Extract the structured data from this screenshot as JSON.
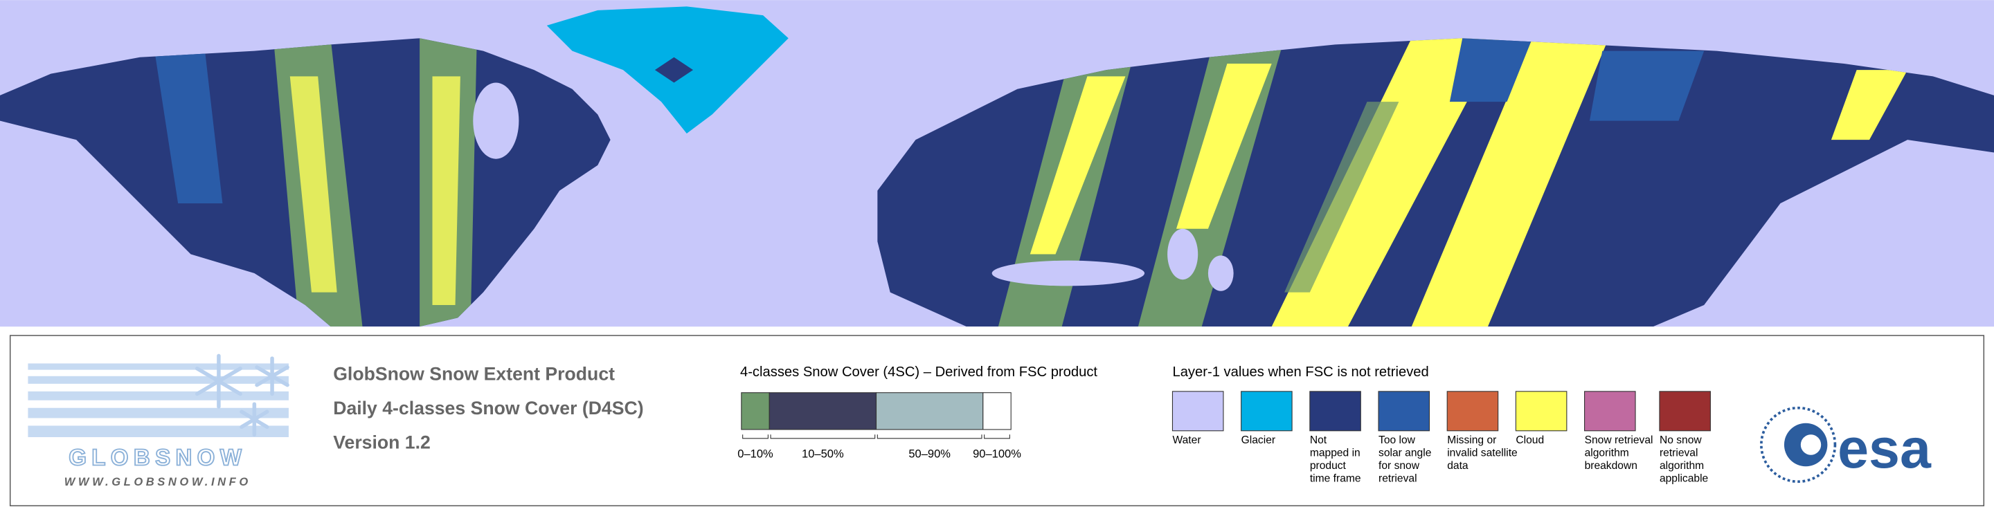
{
  "logo": {
    "name": "GLOBSNOW",
    "url": "WWW.GLOBSNOW.INFO"
  },
  "product": {
    "lines": [
      "GlobSnow Snow Extent Product",
      "Daily 4-classes Snow Cover (D4SC)",
      "Version 1.2"
    ]
  },
  "snow_cover_legend": {
    "title": "4-classes Snow Cover (4SC) – Derived from FSC product",
    "classes": [
      {
        "label": "0–10%",
        "color": "#6f9a6c"
      },
      {
        "label": "10–50%",
        "color": "#3e3f5e"
      },
      {
        "label": "50–90%",
        "color": "#a3bcc1"
      },
      {
        "label": "90–100%",
        "color": "#ffffff"
      }
    ]
  },
  "layer_legend": {
    "title": "Layer-1 values when FSC is not retrieved",
    "items": [
      {
        "lines": [
          "Water"
        ],
        "color": "#c8c8fa"
      },
      {
        "lines": [
          "Glacier"
        ],
        "color": "#00b0e6"
      },
      {
        "lines": [
          "Not",
          "mapped in",
          "product",
          "time frame"
        ],
        "color": "#283a7c"
      },
      {
        "lines": [
          "Too low",
          "solar angle",
          "for snow",
          "retrieval"
        ],
        "color": "#2a5ca8"
      },
      {
        "lines": [
          "Missing or",
          "invalid satellite",
          "data"
        ],
        "color": "#d0643e"
      },
      {
        "lines": [
          "Cloud"
        ],
        "color": "#ffff5a"
      },
      {
        "lines": [
          "Snow retrieval",
          "algorithm",
          "breakdown"
        ],
        "color": "#c06aa0"
      },
      {
        "lines": [
          "No snow",
          "retrieval",
          "algorithm",
          "applicable"
        ],
        "color": "#9a2f30"
      }
    ]
  },
  "esa_logo": "esa"
}
